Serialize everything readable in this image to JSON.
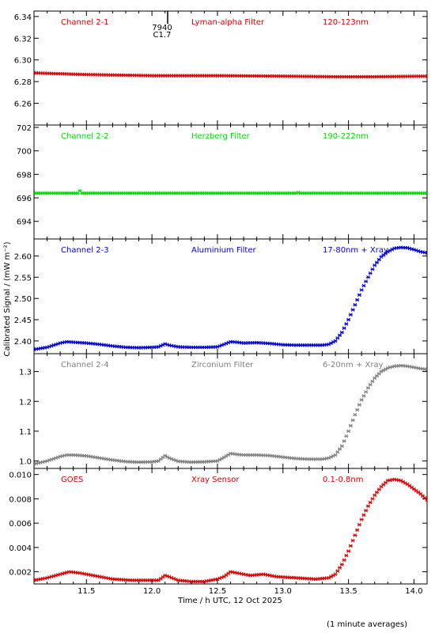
{
  "xaxis": {
    "label": "Time / h UTC, 12 Oct 2025",
    "range": [
      11.1,
      14.1
    ],
    "ticks": [
      11.5,
      12.0,
      12.5,
      13.0,
      13.5,
      14.0
    ],
    "tick_labels": [
      "11.5",
      "12.0",
      "12.5",
      "13.0",
      "13.5",
      "14.0"
    ]
  },
  "ylabel": "Calibrated Signal / (mW m⁻²)",
  "footnote": "(1 minute averages)",
  "flare_marker": {
    "time": 12.12,
    "id": "7940",
    "class": "C1.7"
  },
  "chart_data": [
    {
      "type": "scatter",
      "panel": "Channel 2-1",
      "channel": "Channel 2-1",
      "filter": "Lyman-alpha Filter",
      "band": "120-123nm",
      "color": "#e00000",
      "ylim": [
        6.24,
        6.345
      ],
      "yticks": [
        6.26,
        6.28,
        6.3,
        6.32,
        6.34
      ],
      "ytick_labels": [
        "6.26",
        "6.28",
        "6.30",
        "6.32",
        "6.34"
      ],
      "x": [
        11.1,
        11.5,
        12.0,
        12.5,
        13.0,
        13.4,
        13.7,
        14.1
      ],
      "y": [
        6.288,
        6.2865,
        6.2855,
        6.2855,
        6.285,
        6.2845,
        6.2845,
        6.285
      ]
    },
    {
      "type": "scatter",
      "panel": "Channel 2-2",
      "channel": "Channel 2-2",
      "filter": "Herzberg Filter",
      "band": "190-222nm",
      "color": "#00e000",
      "ylim": [
        692.5,
        702.2
      ],
      "yticks": [
        694,
        696,
        698,
        700,
        702
      ],
      "ytick_labels": [
        "694",
        "696",
        "698",
        "700",
        "702"
      ],
      "x": [
        11.1,
        11.44,
        11.45,
        11.46,
        13.1,
        13.11,
        13.12,
        14.1
      ],
      "y": [
        696.4,
        696.4,
        696.6,
        696.4,
        696.4,
        696.6,
        696.4,
        696.4
      ]
    },
    {
      "type": "scatter",
      "panel": "Channel 2-3",
      "channel": "Channel 2-3",
      "filter": "Aluminium Filter",
      "band": "17-80nm + Xray",
      "color": "#0000e0",
      "ylim": [
        2.37,
        2.64
      ],
      "yticks": [
        2.4,
        2.45,
        2.5,
        2.55,
        2.6
      ],
      "ytick_labels": [
        "2.40",
        "2.45",
        "2.50",
        "2.55",
        "2.60"
      ],
      "x": [
        11.1,
        11.2,
        11.3,
        11.35,
        11.4,
        11.5,
        11.6,
        11.7,
        11.8,
        11.9,
        12.0,
        12.05,
        12.1,
        12.13,
        12.2,
        12.3,
        12.4,
        12.5,
        12.55,
        12.6,
        12.65,
        12.7,
        12.8,
        12.9,
        13.0,
        13.1,
        13.2,
        13.3,
        13.35,
        13.4,
        13.45,
        13.5,
        13.55,
        13.6,
        13.65,
        13.7,
        13.75,
        13.8,
        13.85,
        13.9,
        13.95,
        14.0,
        14.05,
        14.1
      ],
      "y": [
        2.38,
        2.385,
        2.395,
        2.398,
        2.397,
        2.395,
        2.392,
        2.388,
        2.385,
        2.384,
        2.385,
        2.386,
        2.393,
        2.39,
        2.386,
        2.385,
        2.385,
        2.386,
        2.392,
        2.398,
        2.397,
        2.395,
        2.396,
        2.394,
        2.391,
        2.39,
        2.39,
        2.39,
        2.392,
        2.4,
        2.42,
        2.45,
        2.485,
        2.52,
        2.55,
        2.578,
        2.598,
        2.61,
        2.618,
        2.62,
        2.619,
        2.615,
        2.61,
        2.607
      ]
    },
    {
      "type": "scatter",
      "panel": "Channel 2-4",
      "channel": "Channel 2-4",
      "filter": "Zirconium Filter",
      "band": "6-20nm + Xray",
      "color": "#808080",
      "ylim": [
        0.975,
        1.36
      ],
      "yticks": [
        1.0,
        1.1,
        1.2,
        1.3
      ],
      "ytick_labels": [
        "1.0",
        "1.1",
        "1.2",
        "1.3"
      ],
      "x": [
        11.1,
        11.2,
        11.3,
        11.35,
        11.4,
        11.5,
        11.6,
        11.7,
        11.8,
        11.9,
        12.0,
        12.05,
        12.1,
        12.13,
        12.2,
        12.3,
        12.4,
        12.5,
        12.55,
        12.6,
        12.65,
        12.7,
        12.8,
        12.9,
        13.0,
        13.1,
        13.2,
        13.3,
        13.35,
        13.4,
        13.45,
        13.5,
        13.55,
        13.6,
        13.65,
        13.7,
        13.75,
        13.8,
        13.85,
        13.9,
        13.95,
        14.0,
        14.05,
        14.1
      ],
      "y": [
        0.99,
        1.0,
        1.015,
        1.02,
        1.02,
        1.017,
        1.01,
        1.003,
        0.998,
        0.996,
        0.997,
        1.0,
        1.018,
        1.01,
        0.999,
        0.996,
        0.997,
        1.0,
        1.012,
        1.025,
        1.022,
        1.02,
        1.02,
        1.018,
        1.013,
        1.008,
        1.006,
        1.006,
        1.01,
        1.02,
        1.05,
        1.1,
        1.155,
        1.205,
        1.245,
        1.278,
        1.3,
        1.312,
        1.318,
        1.32,
        1.318,
        1.314,
        1.31,
        1.307
      ]
    },
    {
      "type": "scatter",
      "panel": "GOES",
      "channel": "GOES",
      "filter": "Xray Sensor",
      "band": "0.1-0.8nm",
      "color": "#e00000",
      "ylim": [
        0.001,
        0.0105
      ],
      "yticks": [
        0.002,
        0.004,
        0.006,
        0.008,
        0.01
      ],
      "ytick_labels": [
        "0.002",
        "0.004",
        "0.006",
        "0.008",
        "0.010"
      ],
      "x": [
        11.1,
        11.2,
        11.3,
        11.37,
        11.45,
        11.55,
        11.7,
        11.85,
        12.0,
        12.05,
        12.1,
        12.13,
        12.2,
        12.3,
        12.4,
        12.5,
        12.55,
        12.6,
        12.65,
        12.75,
        12.85,
        12.95,
        13.1,
        13.25,
        13.35,
        13.4,
        13.45,
        13.5,
        13.55,
        13.6,
        13.65,
        13.7,
        13.75,
        13.8,
        13.85,
        13.9,
        13.95,
        14.0,
        14.05,
        14.1
      ],
      "y": [
        0.0013,
        0.0015,
        0.0018,
        0.002,
        0.0019,
        0.0017,
        0.0014,
        0.0013,
        0.0013,
        0.0013,
        0.0017,
        0.0016,
        0.0013,
        0.0012,
        0.0012,
        0.0014,
        0.0016,
        0.002,
        0.0019,
        0.0017,
        0.0018,
        0.0016,
        0.0015,
        0.0014,
        0.0015,
        0.0018,
        0.0026,
        0.0037,
        0.005,
        0.0063,
        0.0074,
        0.0083,
        0.009,
        0.0095,
        0.0096,
        0.0095,
        0.0092,
        0.0088,
        0.0084,
        0.0079
      ]
    }
  ]
}
